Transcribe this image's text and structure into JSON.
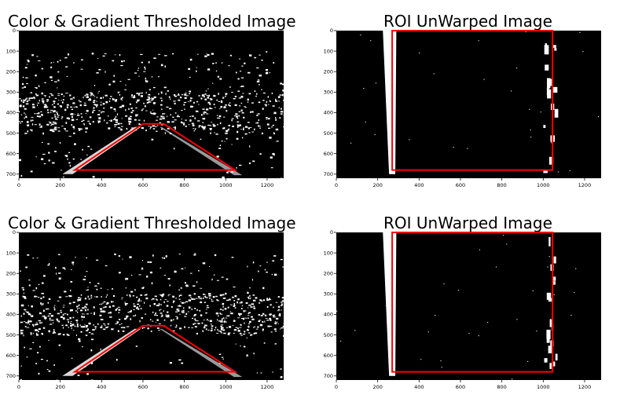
{
  "panels": [
    {
      "title": "Color & Gradient Thresholded Image",
      "xticks": [
        "0",
        "200",
        "400",
        "600",
        "800",
        "1000",
        "1200"
      ],
      "yticks": [
        "0",
        "100",
        "200",
        "300",
        "400",
        "500",
        "600",
        "700"
      ],
      "overlay": "trapezoid"
    },
    {
      "title": "ROI UnWarped Image",
      "xticks": [
        "0",
        "200",
        "400",
        "600",
        "800",
        "1000",
        "1200"
      ],
      "yticks": [
        "0",
        "100",
        "200",
        "300",
        "400",
        "500",
        "600",
        "700"
      ],
      "overlay": "rectangle"
    },
    {
      "title": "Color & Gradient Thresholded Image",
      "xticks": [
        "0",
        "200",
        "400",
        "600",
        "800",
        "1000",
        "1200"
      ],
      "yticks": [
        "0",
        "100",
        "200",
        "300",
        "400",
        "500",
        "600",
        "700"
      ],
      "overlay": "trapezoid"
    },
    {
      "title": "ROI UnWarped Image",
      "xticks": [
        "0",
        "200",
        "400",
        "600",
        "800",
        "1000",
        "1200"
      ],
      "yticks": [
        "0",
        "100",
        "200",
        "300",
        "400",
        "500",
        "600",
        "700"
      ],
      "overlay": "rectangle"
    }
  ],
  "colors": {
    "overlay": "#ff0000",
    "image_bg": "#000000",
    "edges": "#ffffff"
  }
}
